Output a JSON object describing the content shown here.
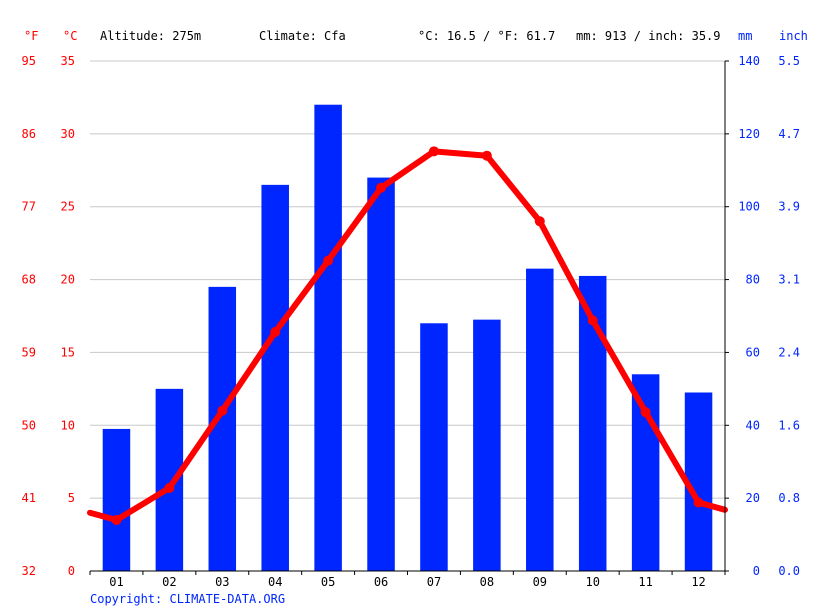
{
  "header": {
    "unit_f": "°F",
    "unit_c": "°C",
    "altitude": "Altitude: 275m",
    "climate": "Climate: Cfa",
    "temp_summary": "°C: 16.5 / °F: 61.7",
    "precip_summary": "mm: 913 / inch: 35.9",
    "unit_mm": "mm",
    "unit_inch": "inch"
  },
  "copyright": "Copyright: CLIMATE-DATA.ORG",
  "colors": {
    "temp": "#ff0000",
    "precip": "#0026ff",
    "grid": "#c8c8c8"
  },
  "chart_data": {
    "type": "bar",
    "categories": [
      "01",
      "02",
      "03",
      "04",
      "05",
      "06",
      "07",
      "08",
      "09",
      "10",
      "11",
      "12"
    ],
    "series": [
      {
        "kind": "bar",
        "axis": "precip_mm",
        "values": [
          39,
          50,
          78,
          106,
          128,
          108,
          68,
          69,
          83,
          81,
          54,
          49
        ]
      },
      {
        "kind": "line",
        "axis": "temp_c",
        "values": [
          3.5,
          5.7,
          11.0,
          16.4,
          21.3,
          26.3,
          28.8,
          28.5,
          24.0,
          17.2,
          10.9,
          4.7
        ],
        "edge_start": 4.0,
        "edge_end": 4.2
      }
    ],
    "axes": {
      "temp_c": {
        "range": [
          0,
          35
        ],
        "ticks": [
          "0",
          "5",
          "10",
          "15",
          "20",
          "25",
          "30",
          "35"
        ]
      },
      "temp_f": {
        "range": [
          32,
          95
        ],
        "ticks": [
          "32",
          "41",
          "50",
          "59",
          "68",
          "77",
          "86",
          "95"
        ]
      },
      "precip_mm": {
        "range": [
          0,
          140
        ],
        "ticks": [
          "0",
          "20",
          "40",
          "60",
          "80",
          "100",
          "120",
          "140"
        ]
      },
      "precip_inch": {
        "ticks": [
          "0.0",
          "0.8",
          "1.6",
          "2.4",
          "3.1",
          "3.9",
          "4.7",
          "5.5"
        ]
      }
    },
    "grid": true
  }
}
